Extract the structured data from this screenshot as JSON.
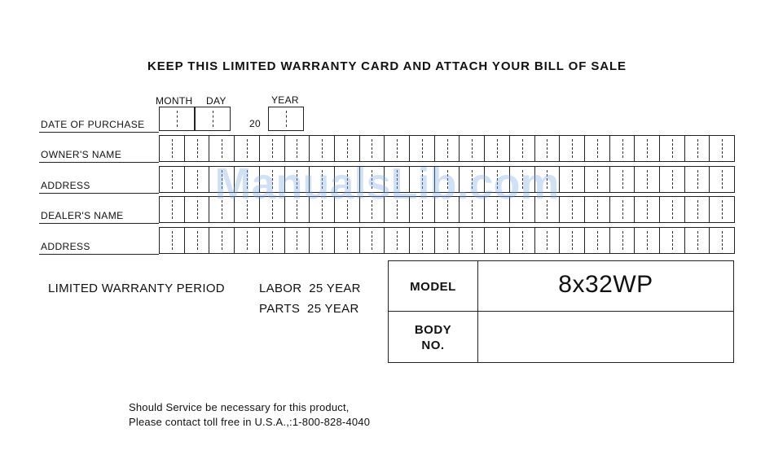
{
  "card": {
    "title": "KEEP THIS LIMITED WARRANTY CARD AND ATTACH YOUR BILL OF SALE",
    "date": {
      "label": "DATE OF PURCHASE",
      "month_header": "MONTH",
      "day_header": "DAY",
      "year_header": "YEAR",
      "year_prefix": "20"
    },
    "rows": [
      {
        "label": "OWNER'S NAME"
      },
      {
        "label": "ADDRESS"
      },
      {
        "label": "DEALER'S NAME"
      },
      {
        "label": "ADDRESS"
      }
    ],
    "warranty": {
      "label": "LIMITED WARRANTY PERIOD",
      "labor": "LABOR  25 YEAR",
      "parts": "PARTS  25 YEAR"
    },
    "table": {
      "model_label": "MODEL",
      "model_value": "8x32WP",
      "body_label_line1": "BODY",
      "body_label_line2": "NO.",
      "body_value": ""
    },
    "footer": {
      "line1": "Should Service be necessary for this product,",
      "line2": "Please contact toll free in U.S.A.,:1-800-828-4040"
    },
    "watermark": "ManualsLib.com"
  }
}
